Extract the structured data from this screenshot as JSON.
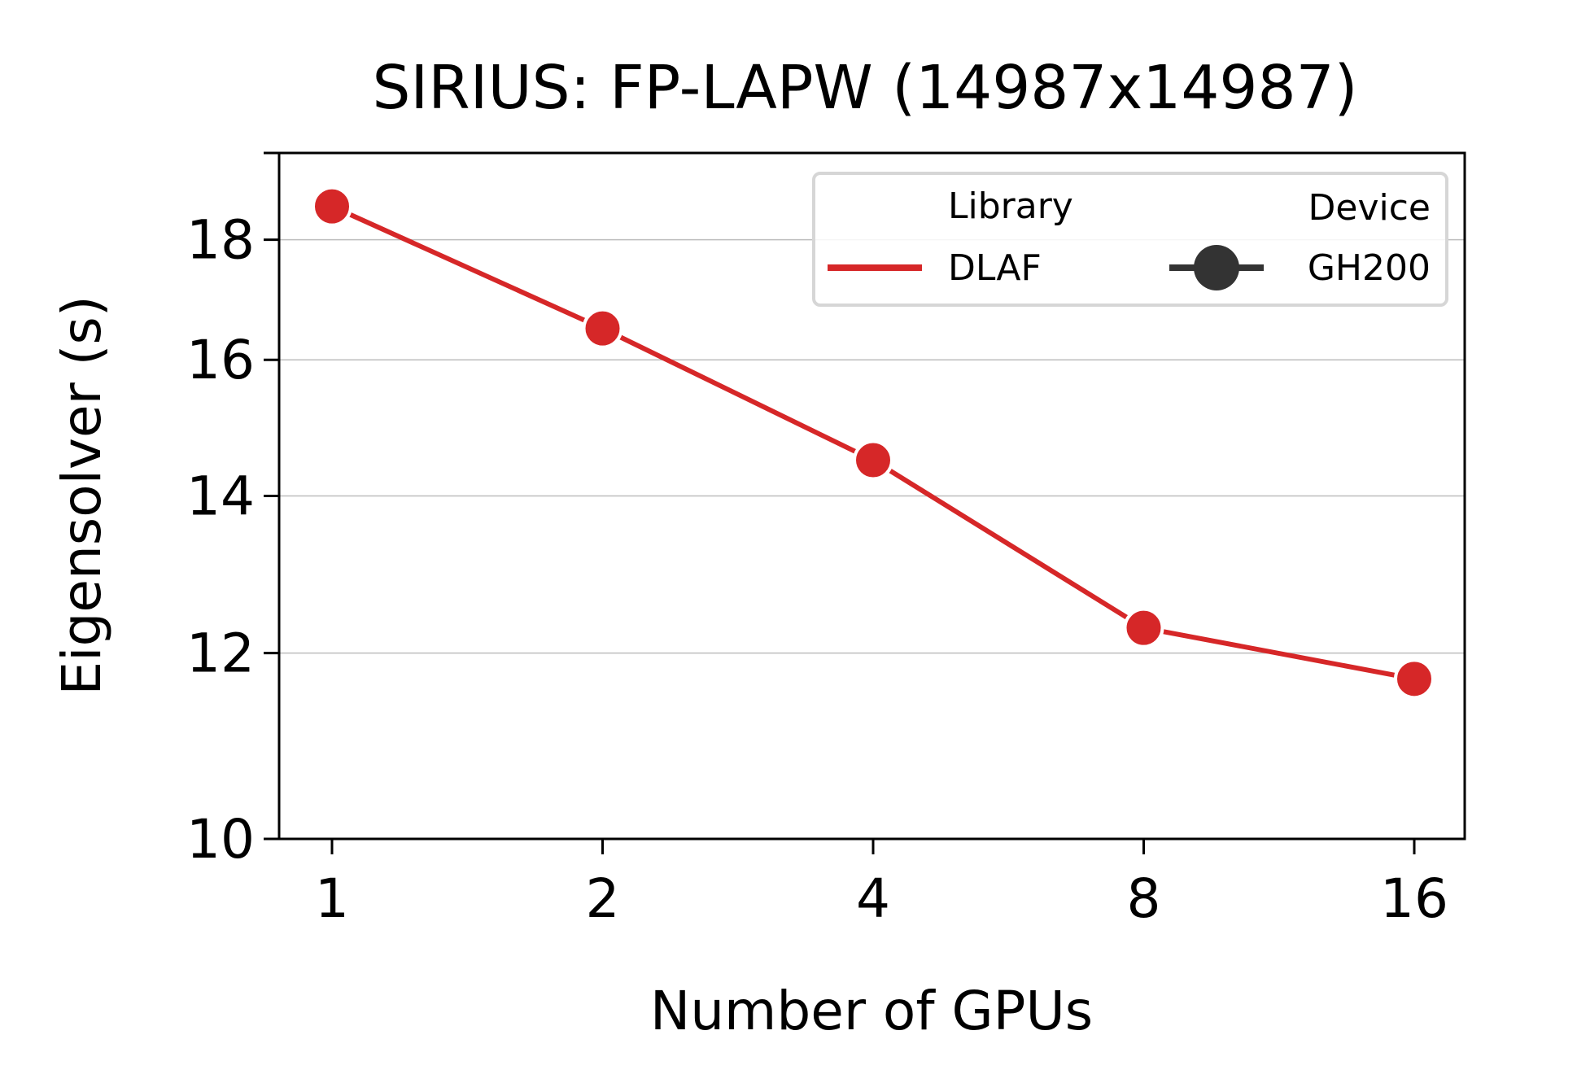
{
  "chart_data": {
    "type": "line",
    "title": "SIRIUS: FP-LAPW (14987x14987)",
    "xlabel": "Number of GPUs",
    "ylabel": "Eigensolver (s)",
    "x_scale": "log2",
    "y_scale": "log",
    "categories": [
      "1",
      "2",
      "4",
      "8",
      "16"
    ],
    "x": [
      1,
      2,
      4,
      8,
      16
    ],
    "ylim": [
      10,
      19.6
    ],
    "yticks": [
      10,
      12,
      14,
      16,
      18
    ],
    "ytick_labels": [
      "10",
      "12",
      "14",
      "16",
      "18"
    ],
    "grid": "horizontal",
    "series": [
      {
        "name": "DLAF",
        "device": "GH200",
        "color": "#d62728",
        "marker": "circle",
        "values": [
          18.6,
          16.5,
          14.5,
          12.3,
          11.7
        ]
      }
    ],
    "legend": {
      "placement": "top-right",
      "library_title": "Library",
      "library_label": "DLAF",
      "device_title": "Device",
      "device_label": "GH200"
    }
  }
}
